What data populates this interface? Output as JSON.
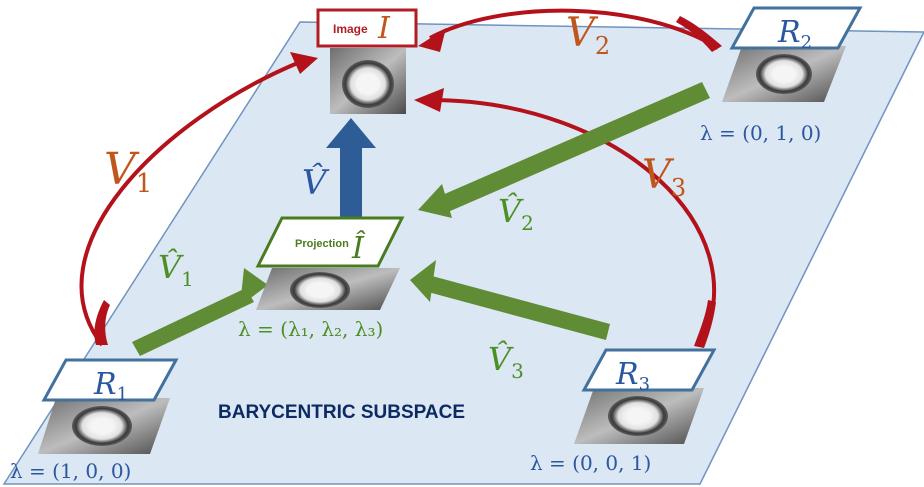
{
  "plane_label": "BARYCENTRIC SUBSPACE",
  "image": {
    "tag": "Image",
    "symbol": "I"
  },
  "projection": {
    "tag": "Projection",
    "symbol": "Î"
  },
  "projection_lambda": "λ = (λ₁, λ₂, λ₃)",
  "references": [
    {
      "symbol": "R",
      "sub": "1",
      "lambda": "λ = (1, 0, 0)"
    },
    {
      "symbol": "R",
      "sub": "2",
      "lambda": "λ = (0, 1, 0)"
    },
    {
      "symbol": "R",
      "sub": "3",
      "lambda": "λ = (0, 0, 1)"
    }
  ],
  "arrows": {
    "v1": {
      "symbol": "V",
      "sub": "1"
    },
    "v2": {
      "symbol": "V",
      "sub": "2"
    },
    "v3": {
      "symbol": "V",
      "sub": "3"
    },
    "vhat": {
      "symbol": "V̂"
    },
    "vhat1": {
      "symbol": "V̂",
      "sub": "1"
    },
    "vhat2": {
      "symbol": "V̂",
      "sub": "2"
    },
    "vhat3": {
      "symbol": "V̂",
      "sub": "3"
    }
  },
  "colors": {
    "plane_fill": "#dbe7f3",
    "plane_stroke": "#6f94c0",
    "frame_blue": "#41719c",
    "frame_red": "#b01e24",
    "frame_green": "#4a7b1e",
    "arrow_red": "#b3121b",
    "arrow_green": "#5f8c34",
    "arrow_blue": "#2e5c96",
    "label_orange": "#c0561c",
    "label_green": "#4d8f25",
    "label_blue": "#2a57a0",
    "navy": "#0d2a63"
  }
}
